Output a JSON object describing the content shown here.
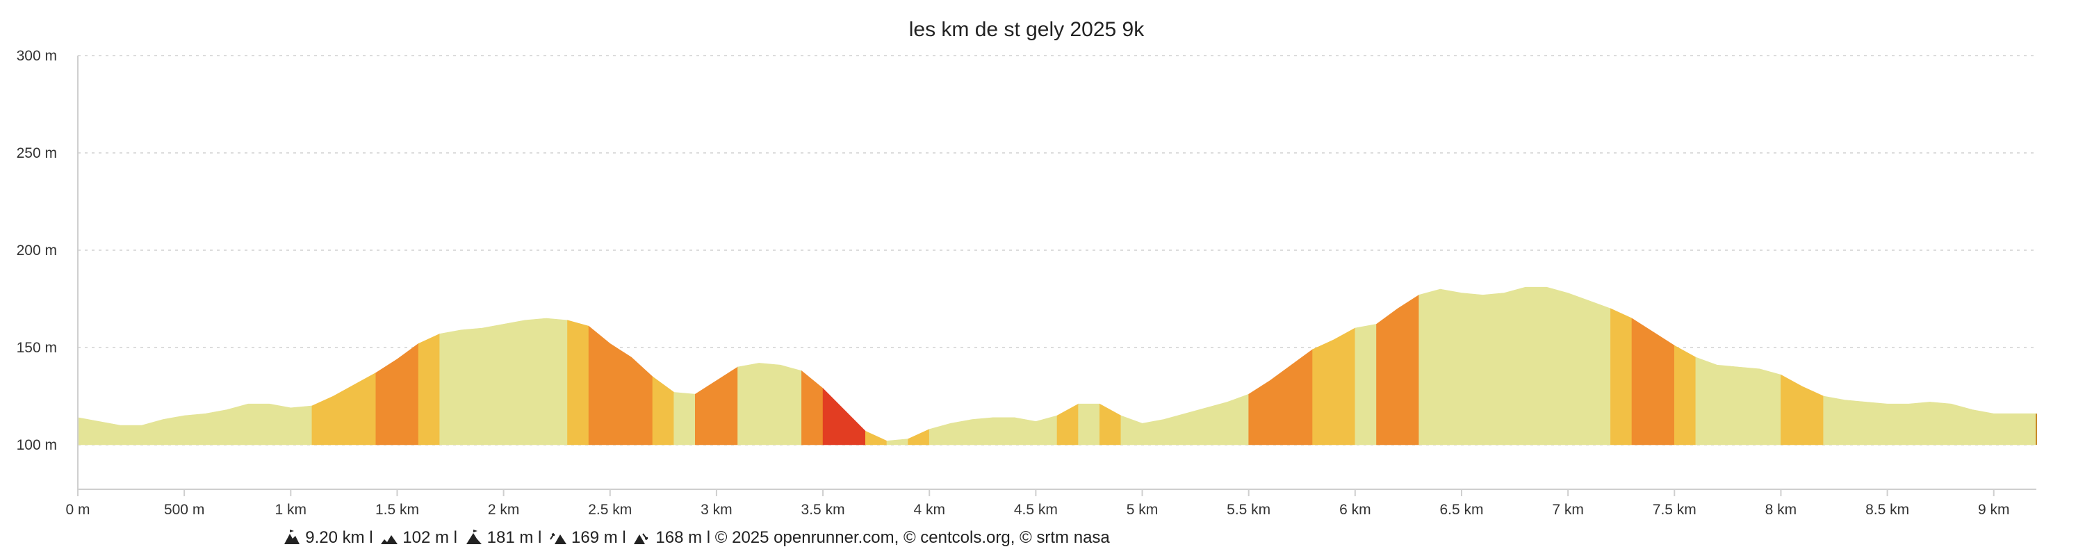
{
  "chart_data": {
    "type": "area",
    "title": "les km de st gely 2025 9k",
    "xlabel": "",
    "ylabel": "",
    "x_unit": "km",
    "y_unit": "m",
    "xlim": [
      0,
      9.2
    ],
    "ylim": [
      100,
      300
    ],
    "grid": true,
    "legend": "none",
    "yticks": [
      {
        "value": 100,
        "label": "100 m"
      },
      {
        "value": 150,
        "label": "150 m"
      },
      {
        "value": 200,
        "label": "200 m"
      },
      {
        "value": 250,
        "label": "250 m"
      },
      {
        "value": 300,
        "label": "300 m"
      }
    ],
    "xticks": [
      {
        "value": 0,
        "label": "0 m"
      },
      {
        "value": 0.5,
        "label": "500 m"
      },
      {
        "value": 1,
        "label": "1 km"
      },
      {
        "value": 1.5,
        "label": "1.5 km"
      },
      {
        "value": 2,
        "label": "2 km"
      },
      {
        "value": 2.5,
        "label": "2.5 km"
      },
      {
        "value": 3,
        "label": "3 km"
      },
      {
        "value": 3.5,
        "label": "3.5 km"
      },
      {
        "value": 4,
        "label": "4 km"
      },
      {
        "value": 4.5,
        "label": "4.5 km"
      },
      {
        "value": 5,
        "label": "5 km"
      },
      {
        "value": 5.5,
        "label": "5.5 km"
      },
      {
        "value": 6,
        "label": "6 km"
      },
      {
        "value": 6.5,
        "label": "6.5 km"
      },
      {
        "value": 7,
        "label": "7 km"
      },
      {
        "value": 7.5,
        "label": "7.5 km"
      },
      {
        "value": 8,
        "label": "8 km"
      },
      {
        "value": 8.5,
        "label": "8.5 km"
      },
      {
        "value": 9,
        "label": "9 km"
      }
    ],
    "colors": {
      "flat": "#e4e497",
      "gentle": "#f2c045",
      "moderate": "#ef8c2e",
      "steep": "#e23d22"
    },
    "points": [
      {
        "x": 0,
        "y": 114
      },
      {
        "x": 0.1,
        "y": 112
      },
      {
        "x": 0.2,
        "y": 110
      },
      {
        "x": 0.3,
        "y": 110
      },
      {
        "x": 0.4,
        "y": 113
      },
      {
        "x": 0.5,
        "y": 115
      },
      {
        "x": 0.6,
        "y": 116
      },
      {
        "x": 0.7,
        "y": 118
      },
      {
        "x": 0.8,
        "y": 121
      },
      {
        "x": 0.9,
        "y": 121
      },
      {
        "x": 1.0,
        "y": 119
      },
      {
        "x": 1.1,
        "y": 120
      },
      {
        "x": 1.2,
        "y": 125
      },
      {
        "x": 1.3,
        "y": 131
      },
      {
        "x": 1.4,
        "y": 137
      },
      {
        "x": 1.5,
        "y": 144
      },
      {
        "x": 1.6,
        "y": 152
      },
      {
        "x": 1.7,
        "y": 157
      },
      {
        "x": 1.8,
        "y": 159
      },
      {
        "x": 1.9,
        "y": 160
      },
      {
        "x": 2.0,
        "y": 162
      },
      {
        "x": 2.1,
        "y": 164
      },
      {
        "x": 2.2,
        "y": 165
      },
      {
        "x": 2.3,
        "y": 164
      },
      {
        "x": 2.4,
        "y": 161
      },
      {
        "x": 2.5,
        "y": 152
      },
      {
        "x": 2.6,
        "y": 145
      },
      {
        "x": 2.7,
        "y": 135
      },
      {
        "x": 2.8,
        "y": 127
      },
      {
        "x": 2.9,
        "y": 126
      },
      {
        "x": 3.0,
        "y": 133
      },
      {
        "x": 3.1,
        "y": 140
      },
      {
        "x": 3.2,
        "y": 142
      },
      {
        "x": 3.3,
        "y": 141
      },
      {
        "x": 3.4,
        "y": 138
      },
      {
        "x": 3.5,
        "y": 129
      },
      {
        "x": 3.6,
        "y": 118
      },
      {
        "x": 3.7,
        "y": 107
      },
      {
        "x": 3.8,
        "y": 102
      },
      {
        "x": 3.9,
        "y": 103
      },
      {
        "x": 4.0,
        "y": 108
      },
      {
        "x": 4.1,
        "y": 111
      },
      {
        "x": 4.2,
        "y": 113
      },
      {
        "x": 4.3,
        "y": 114
      },
      {
        "x": 4.4,
        "y": 114
      },
      {
        "x": 4.5,
        "y": 112
      },
      {
        "x": 4.6,
        "y": 115
      },
      {
        "x": 4.7,
        "y": 121
      },
      {
        "x": 4.8,
        "y": 121
      },
      {
        "x": 4.9,
        "y": 115
      },
      {
        "x": 5.0,
        "y": 111
      },
      {
        "x": 5.1,
        "y": 113
      },
      {
        "x": 5.2,
        "y": 116
      },
      {
        "x": 5.3,
        "y": 119
      },
      {
        "x": 5.4,
        "y": 122
      },
      {
        "x": 5.5,
        "y": 126
      },
      {
        "x": 5.6,
        "y": 133
      },
      {
        "x": 5.7,
        "y": 141
      },
      {
        "x": 5.8,
        "y": 149
      },
      {
        "x": 5.9,
        "y": 154
      },
      {
        "x": 6.0,
        "y": 160
      },
      {
        "x": 6.1,
        "y": 162
      },
      {
        "x": 6.2,
        "y": 170
      },
      {
        "x": 6.3,
        "y": 177
      },
      {
        "x": 6.4,
        "y": 180
      },
      {
        "x": 6.5,
        "y": 178
      },
      {
        "x": 6.6,
        "y": 177
      },
      {
        "x": 6.7,
        "y": 178
      },
      {
        "x": 6.8,
        "y": 181
      },
      {
        "x": 6.9,
        "y": 181
      },
      {
        "x": 7.0,
        "y": 178
      },
      {
        "x": 7.1,
        "y": 174
      },
      {
        "x": 7.2,
        "y": 170
      },
      {
        "x": 7.3,
        "y": 165
      },
      {
        "x": 7.4,
        "y": 158
      },
      {
        "x": 7.5,
        "y": 151
      },
      {
        "x": 7.6,
        "y": 145
      },
      {
        "x": 7.7,
        "y": 141
      },
      {
        "x": 7.8,
        "y": 140
      },
      {
        "x": 7.9,
        "y": 139
      },
      {
        "x": 8.0,
        "y": 136
      },
      {
        "x": 8.1,
        "y": 130
      },
      {
        "x": 8.2,
        "y": 125
      },
      {
        "x": 8.3,
        "y": 123
      },
      {
        "x": 8.4,
        "y": 122
      },
      {
        "x": 8.5,
        "y": 121
      },
      {
        "x": 8.6,
        "y": 121
      },
      {
        "x": 8.7,
        "y": 122
      },
      {
        "x": 8.8,
        "y": 121
      },
      {
        "x": 8.9,
        "y": 118
      },
      {
        "x": 9.0,
        "y": 116
      },
      {
        "x": 9.1,
        "y": 116
      },
      {
        "x": 9.2,
        "y": 116
      }
    ],
    "segments": [
      {
        "x0": 0,
        "x1": 1.1,
        "grade": "flat"
      },
      {
        "x0": 1.1,
        "x1": 1.4,
        "grade": "gentle"
      },
      {
        "x0": 1.4,
        "x1": 1.6,
        "grade": "moderate"
      },
      {
        "x0": 1.6,
        "x1": 1.7,
        "grade": "gentle"
      },
      {
        "x0": 1.7,
        "x1": 2.3,
        "grade": "flat"
      },
      {
        "x0": 2.3,
        "x1": 2.4,
        "grade": "gentle"
      },
      {
        "x0": 2.4,
        "x1": 2.7,
        "grade": "moderate"
      },
      {
        "x0": 2.7,
        "x1": 2.8,
        "grade": "gentle"
      },
      {
        "x0": 2.8,
        "x1": 2.9,
        "grade": "flat"
      },
      {
        "x0": 2.9,
        "x1": 3.1,
        "grade": "moderate"
      },
      {
        "x0": 3.1,
        "x1": 3.4,
        "grade": "flat"
      },
      {
        "x0": 3.4,
        "x1": 3.5,
        "grade": "moderate"
      },
      {
        "x0": 3.5,
        "x1": 3.7,
        "grade": "steep"
      },
      {
        "x0": 3.7,
        "x1": 3.8,
        "grade": "gentle"
      },
      {
        "x0": 3.8,
        "x1": 3.9,
        "grade": "flat"
      },
      {
        "x0": 3.9,
        "x1": 4.0,
        "grade": "gentle"
      },
      {
        "x0": 4.0,
        "x1": 4.6,
        "grade": "flat"
      },
      {
        "x0": 4.6,
        "x1": 4.7,
        "grade": "gentle"
      },
      {
        "x0": 4.7,
        "x1": 4.8,
        "grade": "flat"
      },
      {
        "x0": 4.8,
        "x1": 4.9,
        "grade": "gentle"
      },
      {
        "x0": 4.9,
        "x1": 5.5,
        "grade": "flat"
      },
      {
        "x0": 5.5,
        "x1": 5.8,
        "grade": "moderate"
      },
      {
        "x0": 5.8,
        "x1": 6.0,
        "grade": "gentle"
      },
      {
        "x0": 6.0,
        "x1": 6.1,
        "grade": "flat"
      },
      {
        "x0": 6.1,
        "x1": 6.3,
        "grade": "moderate"
      },
      {
        "x0": 6.3,
        "x1": 7.2,
        "grade": "flat"
      },
      {
        "x0": 7.2,
        "x1": 7.3,
        "grade": "gentle"
      },
      {
        "x0": 7.3,
        "x1": 7.5,
        "grade": "moderate"
      },
      {
        "x0": 7.5,
        "x1": 7.6,
        "grade": "gentle"
      },
      {
        "x0": 7.6,
        "x1": 8.0,
        "grade": "flat"
      },
      {
        "x0": 8.0,
        "x1": 8.2,
        "grade": "gentle"
      },
      {
        "x0": 8.2,
        "x1": 9.2,
        "grade": "flat"
      }
    ]
  },
  "footer": {
    "icons": [
      "distance-icon",
      "min-altitude-icon",
      "max-altitude-icon",
      "elevation-gain-icon",
      "elevation-loss-icon"
    ],
    "distance": "9.20 km l",
    "min_altitude": "102 m l",
    "max_altitude": "181 m l",
    "elevation_gain": "169 m l",
    "elevation_loss": "168 m l © 2025 openrunner.com, © centcols.org, © srtm nasa"
  }
}
